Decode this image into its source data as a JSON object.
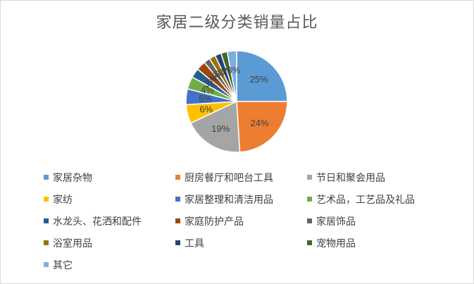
{
  "chart_data": {
    "type": "pie",
    "title": "家居二级分类销量占比",
    "legend_position": "bottom",
    "slices": [
      {
        "name": "家居杂物",
        "value": 25,
        "label": "25%",
        "color": "#5B9BD5"
      },
      {
        "name": "厨房餐厅和吧台工具",
        "value": 24,
        "label": "24%",
        "color": "#ED7D31"
      },
      {
        "name": "节日和聚会用品",
        "value": 19,
        "label": "19%",
        "color": "#A5A5A5"
      },
      {
        "name": "家纺",
        "value": 6,
        "label": "6%",
        "color": "#FFC000"
      },
      {
        "name": "家居整理和清洁用品",
        "value": 5,
        "label": "5%",
        "color": "#4472C4"
      },
      {
        "name": "艺术品，工艺品及礼品",
        "value": 4,
        "label": "4%",
        "color": "#70AD47"
      },
      {
        "name": "水龙头、花洒和配件",
        "value": 3,
        "label": "3%",
        "color": "#255E91"
      },
      {
        "name": "家庭防护产品",
        "value": 3,
        "label": "3%",
        "color": "#9E480E"
      },
      {
        "name": "家居饰品",
        "value": 2,
        "label": "2%",
        "color": "#636363"
      },
      {
        "name": "浴室用品",
        "value": 2,
        "label": "2%",
        "color": "#997300"
      },
      {
        "name": "工具",
        "value": 2,
        "label": "2%",
        "color": "#264478"
      },
      {
        "name": "宠物用品",
        "value": 2,
        "label": "2%",
        "color": "#43682B"
      },
      {
        "name": "其它",
        "value": 3,
        "label": "3%",
        "color": "#7CAFDD"
      }
    ]
  }
}
